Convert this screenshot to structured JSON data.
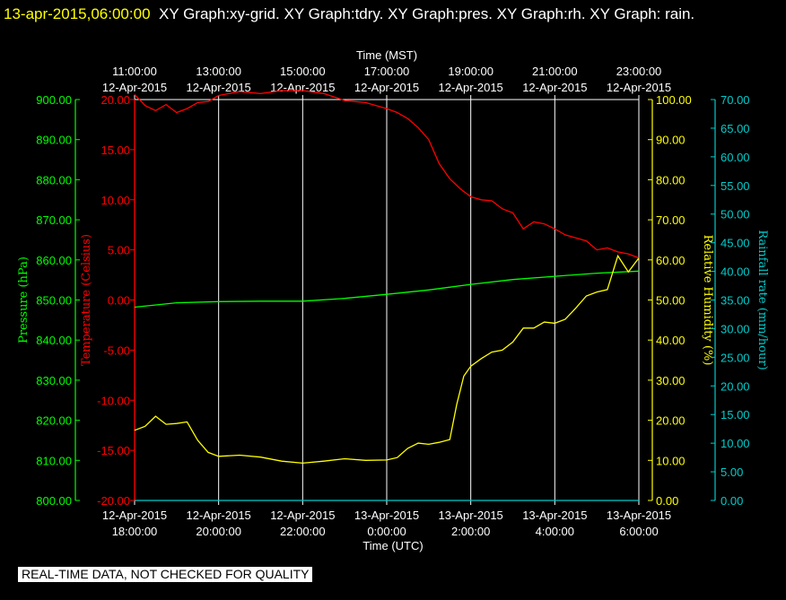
{
  "header": {
    "timestamp": "13-apr-2015,06:00:00",
    "titles": "XY Graph:xy-grid.  XY Graph:tdry.  XY Graph:pres.  XY Graph:rh.  XY Graph: rain."
  },
  "footer": {
    "banner": "REAL-TIME DATA, NOT CHECKED FOR QUALITY"
  },
  "colors": {
    "background": "#000000",
    "grid": "#ffffff",
    "temperature": "#ff0000",
    "pressure": "#00ff00",
    "humidity": "#ffff00",
    "rain": "#00cccc",
    "frame": "#ffffff"
  },
  "chart_data": {
    "type": "line",
    "grid": true,
    "x_top": {
      "label": "Time (MST)",
      "ticks": [
        {
          "time": "11:00:00",
          "date": "12-Apr-2015"
        },
        {
          "time": "13:00:00",
          "date": "12-Apr-2015"
        },
        {
          "time": "15:00:00",
          "date": "12-Apr-2015"
        },
        {
          "time": "17:00:00",
          "date": "12-Apr-2015"
        },
        {
          "time": "19:00:00",
          "date": "12-Apr-2015"
        },
        {
          "time": "21:00:00",
          "date": "12-Apr-2015"
        },
        {
          "time": "23:00:00",
          "date": "12-Apr-2015"
        }
      ]
    },
    "x_bottom": {
      "label": "Time (UTC)",
      "ticks": [
        {
          "date": "12-Apr-2015",
          "time": "18:00:00"
        },
        {
          "date": "12-Apr-2015",
          "time": "20:00:00"
        },
        {
          "date": "12-Apr-2015",
          "time": "22:00:00"
        },
        {
          "date": "13-Apr-2015",
          "time": "0:00:00"
        },
        {
          "date": "13-Apr-2015",
          "time": "2:00:00"
        },
        {
          "date": "13-Apr-2015",
          "time": "4:00:00"
        },
        {
          "date": "13-Apr-2015",
          "time": "6:00:00"
        }
      ]
    },
    "xlim": [
      "12-Apr-2015 18:00:00 UTC",
      "13-Apr-2015 06:00:00 UTC"
    ],
    "axes": {
      "pressure": {
        "label": "Pressure (hPa)",
        "ylim": [
          800,
          900
        ],
        "ticks": [
          "800.00",
          "810.00",
          "820.00",
          "830.00",
          "840.00",
          "850.00",
          "860.00",
          "870.00",
          "880.00",
          "890.00",
          "900.00"
        ]
      },
      "temperature": {
        "label": "Temperature (Celsius)",
        "ylim": [
          -20,
          20
        ],
        "ticks": [
          "-20.00",
          "-15.00",
          "-10.00",
          "-5.00",
          "0.00",
          "5.00",
          "10.00",
          "15.00",
          "20.00"
        ]
      },
      "humidity": {
        "label": "Relative Humidity (%)",
        "ylim": [
          0,
          100
        ],
        "ticks": [
          "0.00",
          "10.00",
          "20.00",
          "30.00",
          "40.00",
          "50.00",
          "60.00",
          "70.00",
          "80.00",
          "90.00",
          "100.00"
        ]
      },
      "rain": {
        "label": "Rainfall rate (mm/hour)",
        "ylim": [
          0,
          70
        ],
        "ticks": [
          "0.00",
          "5.00",
          "10.00",
          "15.00",
          "20.00",
          "25.00",
          "30.00",
          "35.00",
          "40.00",
          "45.00",
          "50.00",
          "55.00",
          "60.00",
          "65.00",
          "70.00"
        ]
      }
    },
    "series": [
      {
        "name": "tdry",
        "axis": "temperature",
        "x_utc": [
          "12-Apr-2015 18:00",
          "18:15",
          "18:30",
          "18:45",
          "19:00",
          "19:15",
          "19:30",
          "19:45",
          "20:00",
          "20:30",
          "21:00",
          "21:30",
          "22:00",
          "22:30",
          "23:00",
          "23:30",
          "13-Apr-2015 0:00",
          "0:15",
          "0:30",
          "0:45",
          "1:00",
          "1:15",
          "1:30",
          "1:45",
          "2:00",
          "2:15",
          "2:30",
          "2:45",
          "3:00",
          "3:15",
          "3:30",
          "3:45",
          "4:00",
          "4:15",
          "4:30",
          "4:45",
          "5:00",
          "5:15",
          "5:30",
          "5:45",
          "6:00"
        ],
        "y": [
          20.5,
          19.4,
          18.9,
          19.5,
          18.7,
          19.1,
          19.7,
          19.8,
          20.4,
          20.8,
          20.6,
          20.9,
          21.0,
          20.6,
          19.9,
          19.7,
          19.1,
          18.7,
          18.1,
          17.2,
          16.0,
          13.6,
          12.1,
          11.1,
          10.3,
          10.0,
          9.9,
          9.1,
          8.7,
          7.1,
          7.8,
          7.6,
          7.1,
          6.5,
          6.2,
          5.9,
          5.0,
          5.2,
          4.8,
          4.6,
          4.2
        ]
      },
      {
        "name": "pres",
        "axis": "pressure",
        "x_utc": [
          "12-Apr-2015 18:00",
          "19:00",
          "20:00",
          "21:00",
          "22:00",
          "23:00",
          "13-Apr-2015 0:00",
          "1:00",
          "2:00",
          "3:00",
          "4:00",
          "5:00",
          "6:00"
        ],
        "y": [
          848.2,
          849.3,
          849.6,
          849.7,
          849.7,
          850.4,
          851.4,
          852.5,
          853.9,
          855.1,
          855.9,
          856.7,
          857.2
        ]
      },
      {
        "name": "rh",
        "axis": "humidity",
        "x_utc": [
          "12-Apr-2015 18:00",
          "18:15",
          "18:30",
          "18:45",
          "19:00",
          "19:15",
          "19:30",
          "19:45",
          "20:00",
          "20:30",
          "21:00",
          "21:30",
          "22:00",
          "22:30",
          "23:00",
          "23:30",
          "13-Apr-2015 0:00",
          "0:15",
          "0:30",
          "0:45",
          "1:00",
          "1:15",
          "1:30",
          "1:40",
          "1:50",
          "2:00",
          "2:15",
          "2:30",
          "2:45",
          "3:00",
          "3:15",
          "3:30",
          "3:45",
          "4:00",
          "4:15",
          "4:30",
          "4:45",
          "5:00",
          "5:15",
          "5:30",
          "5:45",
          "6:00"
        ],
        "y": [
          17.5,
          18.5,
          21.0,
          19.0,
          19.2,
          19.6,
          15.0,
          12.0,
          11.0,
          11.3,
          10.8,
          9.8,
          9.3,
          9.8,
          10.4,
          10.0,
          10.1,
          10.7,
          13.0,
          14.3,
          14.0,
          14.5,
          15.2,
          24.0,
          31.0,
          33.5,
          35.4,
          37.0,
          37.5,
          39.5,
          43.0,
          43.0,
          44.5,
          44.2,
          45.2,
          48.0,
          51.0,
          52.0,
          52.6,
          61.0,
          57.0,
          60.5
        ]
      },
      {
        "name": "rain",
        "axis": "rain",
        "x_utc": [
          "12-Apr-2015 18:00",
          "13-Apr-2015 6:00"
        ],
        "y": [
          0.0,
          0.0
        ]
      }
    ]
  }
}
